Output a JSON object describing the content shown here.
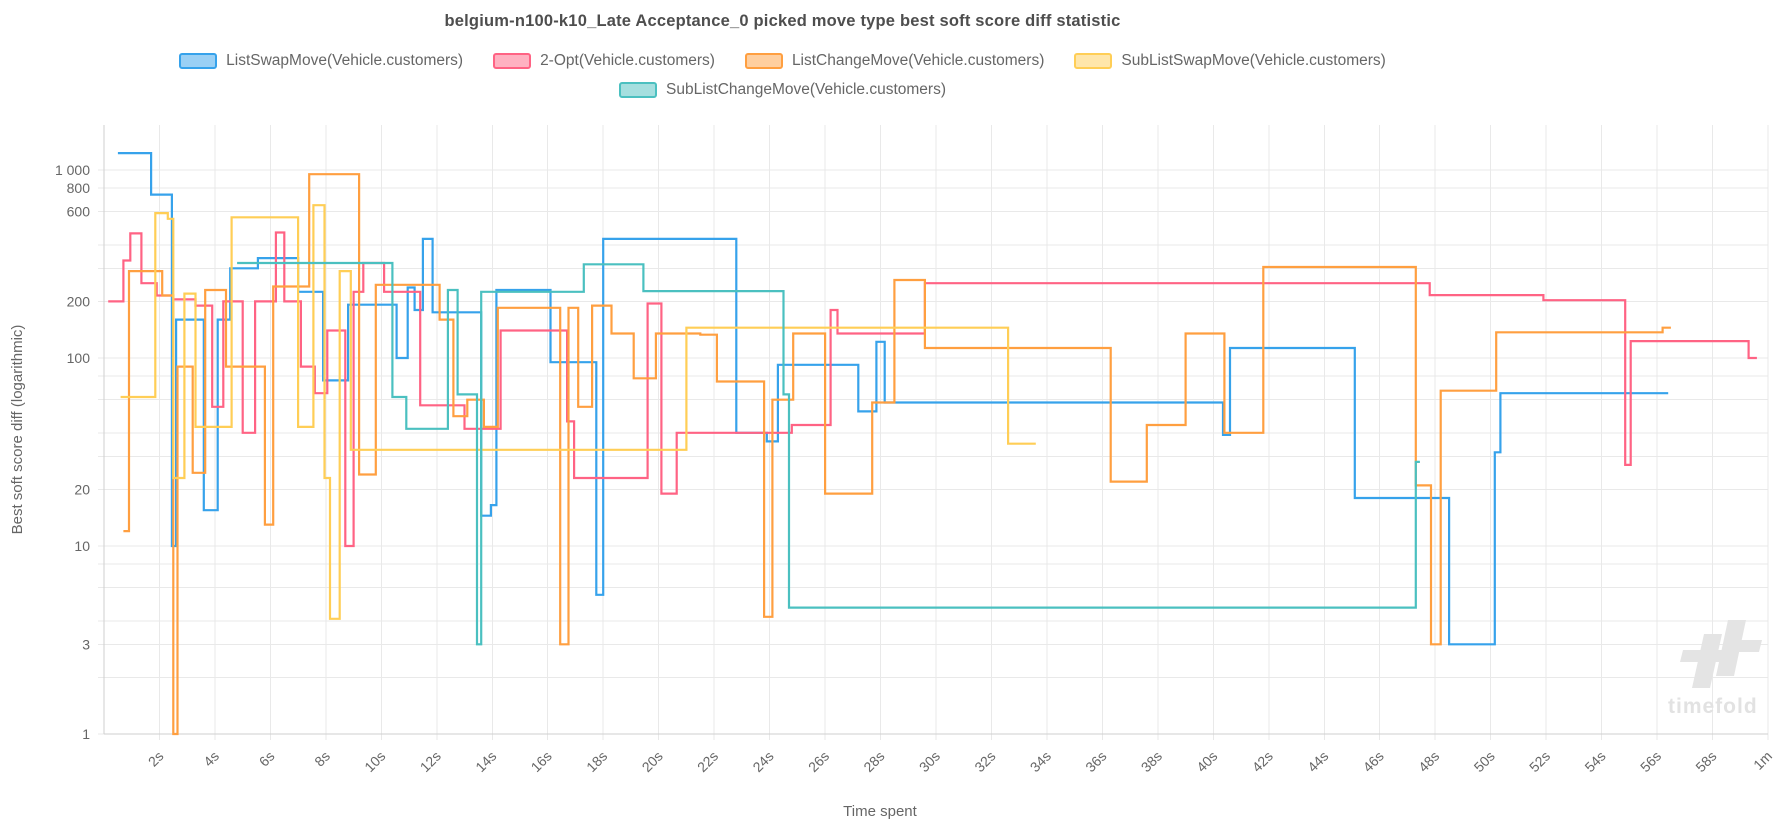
{
  "title": "belgium-n100-k10_Late Acceptance_0 picked move type best soft score diff statistic",
  "watermark": "timefold",
  "legend": {
    "rows": [
      [
        0,
        1,
        2,
        3
      ],
      [
        4
      ]
    ]
  },
  "chart_data": {
    "type": "line",
    "stepped": true,
    "title": "belgium-n100-k10_Late Acceptance_0 picked move type best soft score diff statistic",
    "xlabel": "Time spent",
    "ylabel": "Best soft score diff (logarithmic)",
    "x_axis": {
      "range_seconds": [
        0,
        60
      ],
      "tick_seconds": [
        2,
        4,
        6,
        8,
        10,
        12,
        14,
        16,
        18,
        20,
        22,
        24,
        26,
        28,
        30,
        32,
        34,
        36,
        38,
        40,
        42,
        44,
        46,
        48,
        50,
        52,
        54,
        56,
        58,
        60
      ],
      "tick_labels": [
        "2s",
        "4s",
        "6s",
        "8s",
        "10s",
        "12s",
        "14s",
        "16s",
        "18s",
        "20s",
        "22s",
        "24s",
        "26s",
        "28s",
        "30s",
        "32s",
        "34s",
        "36s",
        "38s",
        "40s",
        "42s",
        "44s",
        "46s",
        "48s",
        "50s",
        "52s",
        "54s",
        "56s",
        "58s",
        "1m"
      ]
    },
    "y_axis": {
      "scale": "logarithmic",
      "range": [
        1,
        1740
      ],
      "gridline_values": [
        1,
        2,
        3,
        4,
        6,
        8,
        10,
        20,
        30,
        40,
        60,
        80,
        100,
        200,
        300,
        400,
        600,
        800,
        1000
      ],
      "labeled_ticks": [
        {
          "value": 1000,
          "label": "1 000"
        },
        {
          "value": 800,
          "label": "800"
        },
        {
          "value": 600,
          "label": "600"
        },
        {
          "value": 200,
          "label": "200"
        },
        {
          "value": 100,
          "label": "100"
        },
        {
          "value": 20,
          "label": "20"
        },
        {
          "value": 10,
          "label": "10"
        },
        {
          "value": 3,
          "label": "3"
        },
        {
          "value": 1,
          "label": "1"
        }
      ]
    },
    "series": [
      {
        "name": "ListSwapMove(Vehicle.customers)",
        "color": "#36A2EB",
        "fill": "rgba(54,162,235,0.5)",
        "points": [
          [
            0.5,
            1230
          ],
          [
            1.7,
            740
          ],
          [
            2.45,
            10
          ],
          [
            2.6,
            160
          ],
          [
            3.6,
            15.5
          ],
          [
            4.1,
            160
          ],
          [
            4.55,
            300
          ],
          [
            5.55,
            340
          ],
          [
            7.0,
            225
          ],
          [
            7.9,
            76
          ],
          [
            8.8,
            192
          ],
          [
            10.55,
            100
          ],
          [
            10.95,
            237
          ],
          [
            11.2,
            180
          ],
          [
            11.5,
            430
          ],
          [
            11.85,
            175
          ],
          [
            13.6,
            14.5
          ],
          [
            13.95,
            16.5
          ],
          [
            14.15,
            230
          ],
          [
            16.1,
            95
          ],
          [
            17.75,
            5.5
          ],
          [
            18.0,
            430
          ],
          [
            22.8,
            40
          ],
          [
            23.9,
            36
          ],
          [
            24.3,
            92
          ],
          [
            27.2,
            52
          ],
          [
            27.85,
            122
          ],
          [
            28.15,
            58
          ],
          [
            40.35,
            39
          ],
          [
            40.6,
            113
          ],
          [
            45.1,
            18
          ],
          [
            48.5,
            3
          ],
          [
            50.15,
            31.5
          ],
          [
            50.35,
            65
          ],
          [
            56.4,
            65
          ]
        ]
      },
      {
        "name": "2-Opt(Vehicle.customers)",
        "color": "#FF6384",
        "fill": "rgba(255,99,132,0.5)",
        "points": [
          [
            0.15,
            200
          ],
          [
            0.7,
            330
          ],
          [
            0.95,
            460
          ],
          [
            1.35,
            250
          ],
          [
            1.9,
            215
          ],
          [
            2.5,
            205
          ],
          [
            3.3,
            190
          ],
          [
            3.9,
            55
          ],
          [
            4.3,
            200
          ],
          [
            5.0,
            40
          ],
          [
            5.45,
            200
          ],
          [
            6.2,
            465
          ],
          [
            6.5,
            200
          ],
          [
            7.1,
            90
          ],
          [
            7.6,
            65
          ],
          [
            8.05,
            140
          ],
          [
            8.7,
            10
          ],
          [
            9.0,
            225
          ],
          [
            9.35,
            320
          ],
          [
            10.1,
            225
          ],
          [
            11.4,
            56
          ],
          [
            13.0,
            42
          ],
          [
            14.3,
            140
          ],
          [
            16.7,
            46
          ],
          [
            16.95,
            23
          ],
          [
            19.6,
            195
          ],
          [
            20.1,
            19
          ],
          [
            20.65,
            40
          ],
          [
            24.8,
            44
          ],
          [
            26.2,
            180
          ],
          [
            26.45,
            135
          ],
          [
            29.6,
            250
          ],
          [
            47.8,
            216
          ],
          [
            51.9,
            203
          ],
          [
            54.85,
            27
          ],
          [
            55.05,
            123
          ],
          [
            59.3,
            100
          ],
          [
            59.6,
            100
          ]
        ]
      },
      {
        "name": "ListChangeMove(Vehicle.customers)",
        "color": "#FF9F40",
        "fill": "rgba(255,159,64,0.5)",
        "points": [
          [
            0.7,
            12
          ],
          [
            0.9,
            290
          ],
          [
            2.1,
            215
          ],
          [
            2.5,
            1
          ],
          [
            2.65,
            90
          ],
          [
            3.2,
            24.5
          ],
          [
            3.65,
            230
          ],
          [
            4.4,
            90
          ],
          [
            5.8,
            13
          ],
          [
            6.1,
            240
          ],
          [
            7.4,
            950
          ],
          [
            9.2,
            24
          ],
          [
            9.8,
            245
          ],
          [
            12.1,
            160
          ],
          [
            12.6,
            49
          ],
          [
            13.1,
            60
          ],
          [
            13.7,
            43
          ],
          [
            14.2,
            185
          ],
          [
            16.45,
            3
          ],
          [
            16.75,
            185
          ],
          [
            17.1,
            55
          ],
          [
            17.6,
            190
          ],
          [
            18.3,
            135
          ],
          [
            19.1,
            78
          ],
          [
            19.9,
            135
          ],
          [
            21.5,
            133
          ],
          [
            22.1,
            75
          ],
          [
            23.8,
            4.2
          ],
          [
            24.1,
            60
          ],
          [
            24.85,
            135
          ],
          [
            26.0,
            19
          ],
          [
            27.7,
            58
          ],
          [
            28.5,
            260
          ],
          [
            29.6,
            113
          ],
          [
            36.3,
            22
          ],
          [
            37.6,
            44
          ],
          [
            39.0,
            135
          ],
          [
            40.4,
            40
          ],
          [
            41.8,
            305
          ],
          [
            47.3,
            21
          ],
          [
            47.85,
            3
          ],
          [
            48.2,
            67
          ],
          [
            50.2,
            137
          ],
          [
            56.2,
            145
          ],
          [
            56.5,
            145
          ]
        ]
      },
      {
        "name": "SubListSwapMove(Vehicle.customers)",
        "color": "#FFCE56",
        "fill": "rgba(255,206,86,0.5)",
        "points": [
          [
            0.6,
            62
          ],
          [
            1.85,
            590
          ],
          [
            2.3,
            550
          ],
          [
            2.5,
            23
          ],
          [
            2.9,
            220
          ],
          [
            3.3,
            43
          ],
          [
            4.6,
            560
          ],
          [
            7.0,
            43
          ],
          [
            7.55,
            650
          ],
          [
            7.95,
            23
          ],
          [
            8.15,
            4.1
          ],
          [
            8.5,
            290
          ],
          [
            8.9,
            32.5
          ],
          [
            21.0,
            145
          ],
          [
            32.6,
            35
          ],
          [
            33.6,
            35
          ]
        ]
      },
      {
        "name": "SubListChangeMove(Vehicle.customers)",
        "color": "#4BC0C0",
        "fill": "rgba(75,192,192,0.5)",
        "points": [
          [
            4.8,
            320
          ],
          [
            10.4,
            62
          ],
          [
            10.9,
            42
          ],
          [
            12.4,
            230
          ],
          [
            12.75,
            64
          ],
          [
            13.45,
            3
          ],
          [
            13.6,
            225
          ],
          [
            17.3,
            315
          ],
          [
            19.45,
            227
          ],
          [
            24.5,
            64
          ],
          [
            24.7,
            4.7
          ],
          [
            47.3,
            28
          ],
          [
            47.45,
            28
          ]
        ]
      }
    ],
    "legend_position": "top",
    "grid": true
  }
}
